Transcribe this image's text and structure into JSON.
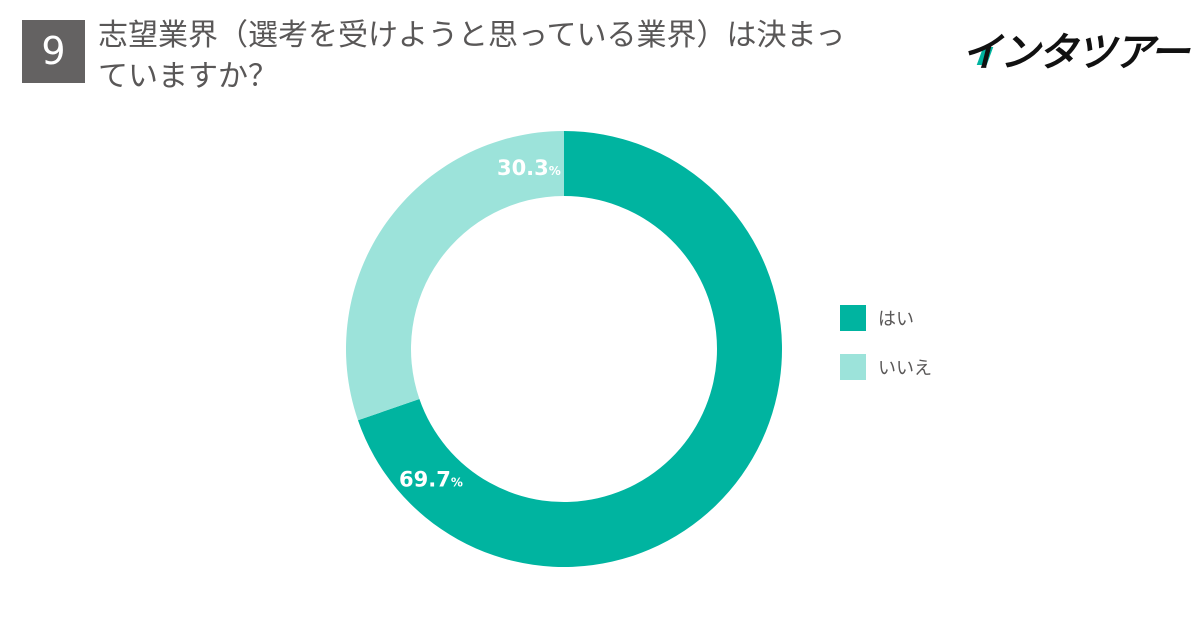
{
  "header": {
    "number": "9",
    "title": "志望業界（選考を受けようと思っている業界）は決まっていますか？",
    "brand": "インタツアー"
  },
  "colors": {
    "primary": "#00b4a0",
    "secondary": "#9ce3da",
    "badge": "#646262",
    "title_text": "#595757",
    "brand_accent": "#00b4a0"
  },
  "chart_data": {
    "type": "pie",
    "variant": "donut",
    "title": "志望業界（選考を受けようと思っている業界）は決まっていますか？",
    "categories": [
      "はい",
      "いいえ"
    ],
    "values": [
      69.7,
      30.3
    ],
    "labels": [
      "69.7",
      "30.3"
    ],
    "unit": "%",
    "colors": [
      "#00b4a0",
      "#9ce3da"
    ],
    "legend_position": "right"
  },
  "legend": [
    {
      "label": "はい",
      "color": "#00b4a0"
    },
    {
      "label": "いいえ",
      "color": "#9ce3da"
    }
  ]
}
